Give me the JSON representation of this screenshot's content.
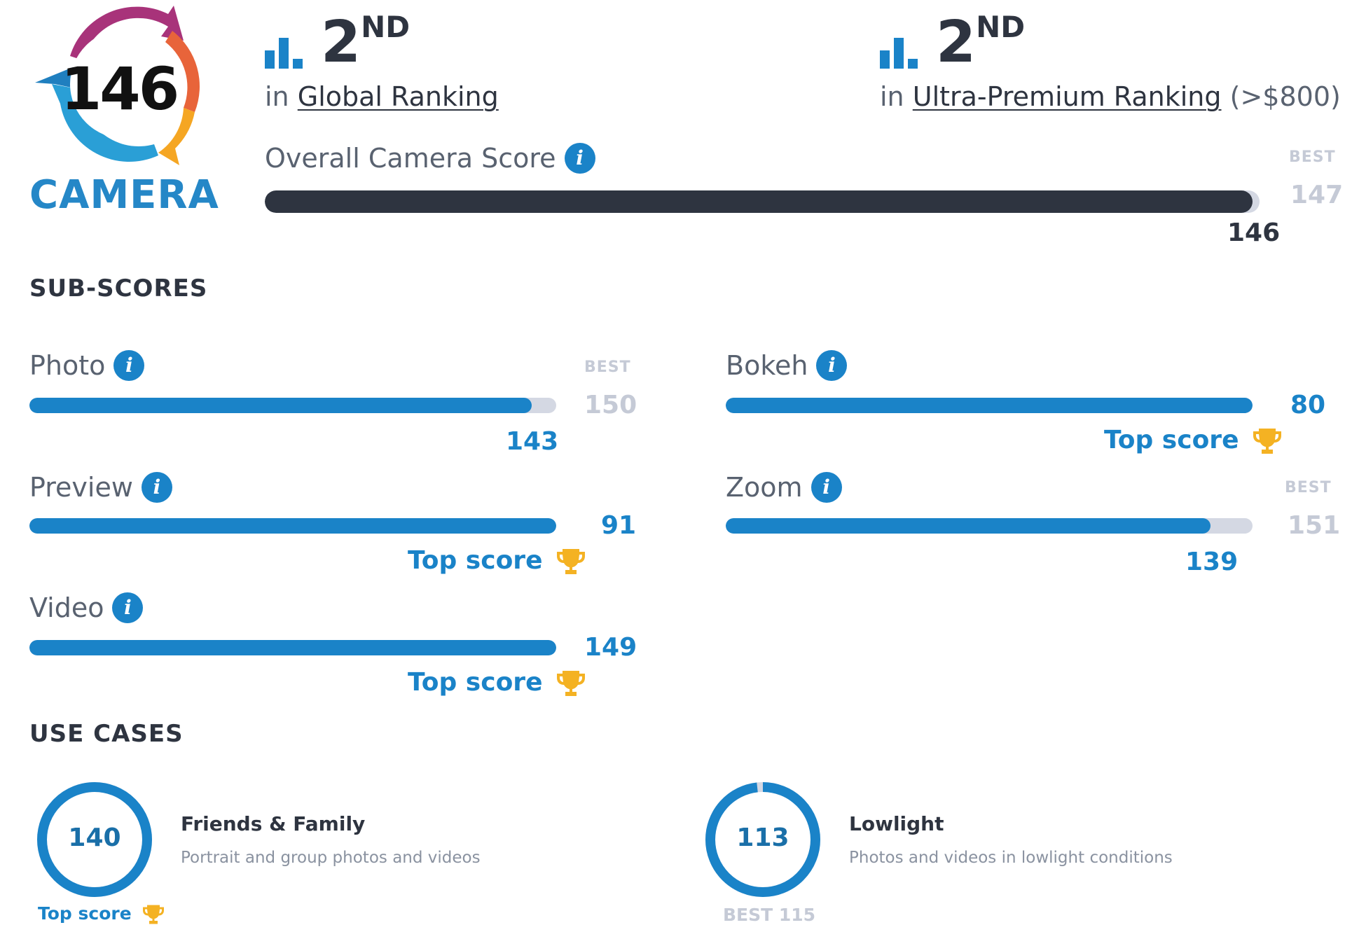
{
  "badge": {
    "score": "146",
    "label": "CAMERA"
  },
  "rankings": [
    {
      "position": "2",
      "suffix": "ND",
      "prefix": "in",
      "link_text": "Global Ranking",
      "extra": ""
    },
    {
      "position": "2",
      "suffix": "ND",
      "prefix": "in",
      "link_text": "Ultra-Premium Ranking",
      "extra": "(>$800)"
    }
  ],
  "overall": {
    "label": "Overall Camera Score",
    "score": 146,
    "best_caption": "BEST",
    "best": 147
  },
  "subscores_title": "SUB-SCORES",
  "subscores": {
    "photo": {
      "label": "Photo",
      "score": 143,
      "best_caption": "BEST",
      "best": 150
    },
    "bokeh": {
      "label": "Bokeh",
      "score": 80,
      "top_label": "Top score"
    },
    "preview": {
      "label": "Preview",
      "score": 91,
      "top_label": "Top score"
    },
    "zoom": {
      "label": "Zoom",
      "score": 139,
      "best_caption": "BEST",
      "best": 151
    },
    "video": {
      "label": "Video",
      "score": 149,
      "top_label": "Top score"
    }
  },
  "use_cases_title": "USE CASES",
  "use_cases": {
    "friends_family": {
      "score": 140,
      "best": 140,
      "title": "Friends & Family",
      "description": "Portrait and group photos and videos",
      "caption": "Top score"
    },
    "lowlight": {
      "score": 113,
      "best": 115,
      "title": "Lowlight",
      "description": "Photos and videos in lowlight conditions",
      "caption": "BEST 115"
    }
  },
  "colors": {
    "accent": "#1a83c8",
    "dark_bar": "#2e3440",
    "track": "#d4d8e3",
    "trophy": "#f4b223",
    "muted": "#c5cad6"
  },
  "icons": {
    "info": "i",
    "ranking": "bar-chart-icon",
    "trophy": "trophy-icon"
  }
}
